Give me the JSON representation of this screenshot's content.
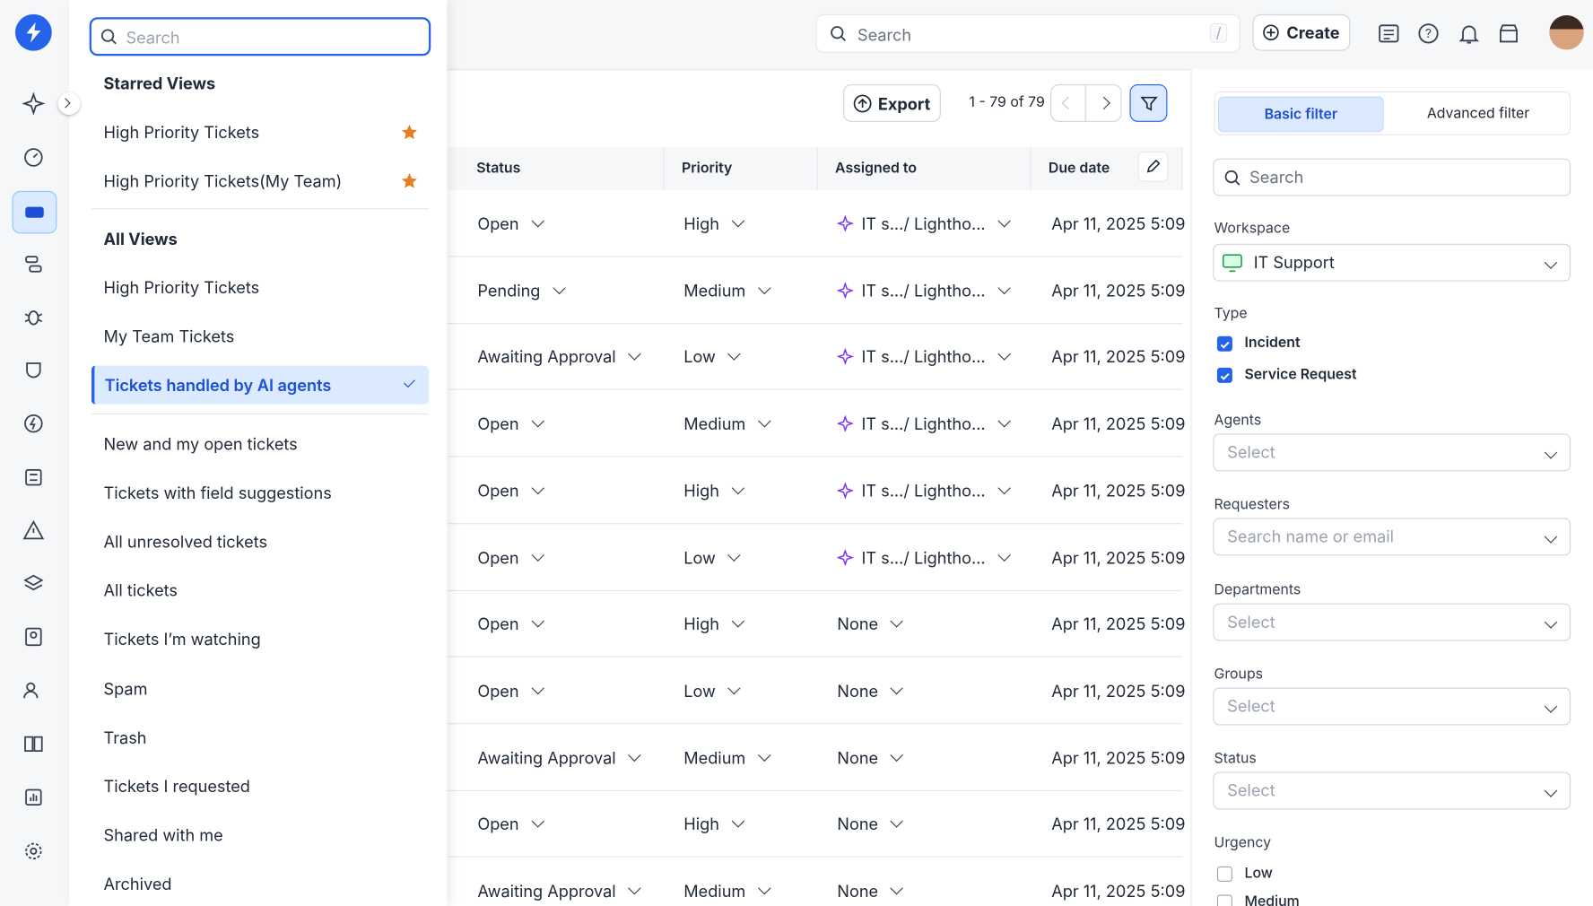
{
  "topbar": {
    "search_placeholder": "Search",
    "shortcut": "/",
    "create": "Create"
  },
  "views_panel": {
    "search_placeholder": "Search",
    "starred_title": "Starred Views",
    "starred": [
      "High Priority Tickets",
      "High Priority Tickets(My Team)"
    ],
    "all_title": "All Views",
    "views": [
      "High Priority Tickets",
      "My Team Tickets",
      "Tickets handled by AI agents",
      "New and my open tickets",
      "Tickets with field suggestions",
      "All unresolved tickets",
      "All tickets",
      "Tickets I’m watching",
      "Spam",
      "Trash",
      "Tickets I requested",
      "Shared with me",
      "Archived"
    ]
  },
  "toolbar": {
    "export": "Export",
    "pagination": "1 - 79 of 79"
  },
  "table": {
    "columns": [
      "Status",
      "Priority",
      "Assigned to",
      "Due date"
    ],
    "rows": [
      [
        "Open",
        "High",
        "IT s.../ Lightho...",
        "Apr 11, 2025 5:09"
      ],
      [
        "Pending",
        "Medium",
        "IT s.../ Lightho...",
        "Apr 11, 2025 5:09"
      ],
      [
        "Awaiting Approval",
        "Low",
        "IT s.../ Lightho...",
        "Apr 11, 2025 5:09"
      ],
      [
        "Open",
        "Medium",
        "IT s.../ Lightho...",
        "Apr 11, 2025 5:09"
      ],
      [
        "Open",
        "High",
        "IT s.../ Lightho...",
        "Apr 11, 2025 5:09"
      ],
      [
        "Open",
        "Low",
        "IT s.../ Lightho...",
        "Apr 11, 2025 5:09"
      ],
      [
        "Open",
        "High",
        "None",
        "Apr 11, 2025 5:09"
      ],
      [
        "Open",
        "Low",
        "None",
        "Apr 11, 2025 5:09"
      ],
      [
        "Awaiting Approval",
        "Medium",
        "None",
        "Apr 11, 2025 5:09"
      ],
      [
        "Open",
        "High",
        "None",
        "Apr 11, 2025 5:09"
      ],
      [
        "Awaiting Approval",
        "Medium",
        "None",
        "Apr 11, 2025 5:09"
      ]
    ]
  },
  "filter": {
    "tabs": [
      "Basic filter",
      "Advanced filter"
    ],
    "search_placeholder": "Search",
    "workspace": {
      "label": "Workspace",
      "value": "IT Support"
    },
    "type": {
      "label": "Type",
      "options": [
        "Incident",
        "Service Request"
      ]
    },
    "selects": [
      {
        "label": "Agents",
        "placeholder": "Select"
      },
      {
        "label": "Requesters",
        "placeholder": "Search name or email"
      },
      {
        "label": "Departments",
        "placeholder": "Select"
      },
      {
        "label": "Groups",
        "placeholder": "Select"
      },
      {
        "label": "Status",
        "placeholder": "Select"
      }
    ],
    "urgency": {
      "label": "Urgency",
      "options": [
        "Low",
        "Medium"
      ]
    }
  }
}
